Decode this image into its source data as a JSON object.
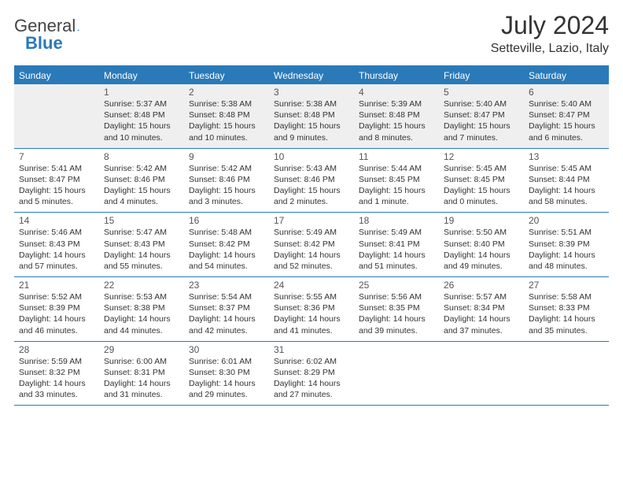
{
  "logo": {
    "text1": "General",
    "text2": "Blue"
  },
  "title": "July 2024",
  "location": "Setteville, Lazio, Italy",
  "colors": {
    "brand": "#2a7ab9",
    "text": "#333333",
    "bg_alt": "#efefef"
  },
  "day_headers": [
    "Sunday",
    "Monday",
    "Tuesday",
    "Wednesday",
    "Thursday",
    "Friday",
    "Saturday"
  ],
  "weeks": [
    [
      null,
      {
        "n": "1",
        "sr": "Sunrise: 5:37 AM",
        "ss": "Sunset: 8:48 PM",
        "d1": "Daylight: 15 hours",
        "d2": "and 10 minutes."
      },
      {
        "n": "2",
        "sr": "Sunrise: 5:38 AM",
        "ss": "Sunset: 8:48 PM",
        "d1": "Daylight: 15 hours",
        "d2": "and 10 minutes."
      },
      {
        "n": "3",
        "sr": "Sunrise: 5:38 AM",
        "ss": "Sunset: 8:48 PM",
        "d1": "Daylight: 15 hours",
        "d2": "and 9 minutes."
      },
      {
        "n": "4",
        "sr": "Sunrise: 5:39 AM",
        "ss": "Sunset: 8:48 PM",
        "d1": "Daylight: 15 hours",
        "d2": "and 8 minutes."
      },
      {
        "n": "5",
        "sr": "Sunrise: 5:40 AM",
        "ss": "Sunset: 8:47 PM",
        "d1": "Daylight: 15 hours",
        "d2": "and 7 minutes."
      },
      {
        "n": "6",
        "sr": "Sunrise: 5:40 AM",
        "ss": "Sunset: 8:47 PM",
        "d1": "Daylight: 15 hours",
        "d2": "and 6 minutes."
      }
    ],
    [
      {
        "n": "7",
        "sr": "Sunrise: 5:41 AM",
        "ss": "Sunset: 8:47 PM",
        "d1": "Daylight: 15 hours",
        "d2": "and 5 minutes."
      },
      {
        "n": "8",
        "sr": "Sunrise: 5:42 AM",
        "ss": "Sunset: 8:46 PM",
        "d1": "Daylight: 15 hours",
        "d2": "and 4 minutes."
      },
      {
        "n": "9",
        "sr": "Sunrise: 5:42 AM",
        "ss": "Sunset: 8:46 PM",
        "d1": "Daylight: 15 hours",
        "d2": "and 3 minutes."
      },
      {
        "n": "10",
        "sr": "Sunrise: 5:43 AM",
        "ss": "Sunset: 8:46 PM",
        "d1": "Daylight: 15 hours",
        "d2": "and 2 minutes."
      },
      {
        "n": "11",
        "sr": "Sunrise: 5:44 AM",
        "ss": "Sunset: 8:45 PM",
        "d1": "Daylight: 15 hours",
        "d2": "and 1 minute."
      },
      {
        "n": "12",
        "sr": "Sunrise: 5:45 AM",
        "ss": "Sunset: 8:45 PM",
        "d1": "Daylight: 15 hours",
        "d2": "and 0 minutes."
      },
      {
        "n": "13",
        "sr": "Sunrise: 5:45 AM",
        "ss": "Sunset: 8:44 PM",
        "d1": "Daylight: 14 hours",
        "d2": "and 58 minutes."
      }
    ],
    [
      {
        "n": "14",
        "sr": "Sunrise: 5:46 AM",
        "ss": "Sunset: 8:43 PM",
        "d1": "Daylight: 14 hours",
        "d2": "and 57 minutes."
      },
      {
        "n": "15",
        "sr": "Sunrise: 5:47 AM",
        "ss": "Sunset: 8:43 PM",
        "d1": "Daylight: 14 hours",
        "d2": "and 55 minutes."
      },
      {
        "n": "16",
        "sr": "Sunrise: 5:48 AM",
        "ss": "Sunset: 8:42 PM",
        "d1": "Daylight: 14 hours",
        "d2": "and 54 minutes."
      },
      {
        "n": "17",
        "sr": "Sunrise: 5:49 AM",
        "ss": "Sunset: 8:42 PM",
        "d1": "Daylight: 14 hours",
        "d2": "and 52 minutes."
      },
      {
        "n": "18",
        "sr": "Sunrise: 5:49 AM",
        "ss": "Sunset: 8:41 PM",
        "d1": "Daylight: 14 hours",
        "d2": "and 51 minutes."
      },
      {
        "n": "19",
        "sr": "Sunrise: 5:50 AM",
        "ss": "Sunset: 8:40 PM",
        "d1": "Daylight: 14 hours",
        "d2": "and 49 minutes."
      },
      {
        "n": "20",
        "sr": "Sunrise: 5:51 AM",
        "ss": "Sunset: 8:39 PM",
        "d1": "Daylight: 14 hours",
        "d2": "and 48 minutes."
      }
    ],
    [
      {
        "n": "21",
        "sr": "Sunrise: 5:52 AM",
        "ss": "Sunset: 8:39 PM",
        "d1": "Daylight: 14 hours",
        "d2": "and 46 minutes."
      },
      {
        "n": "22",
        "sr": "Sunrise: 5:53 AM",
        "ss": "Sunset: 8:38 PM",
        "d1": "Daylight: 14 hours",
        "d2": "and 44 minutes."
      },
      {
        "n": "23",
        "sr": "Sunrise: 5:54 AM",
        "ss": "Sunset: 8:37 PM",
        "d1": "Daylight: 14 hours",
        "d2": "and 42 minutes."
      },
      {
        "n": "24",
        "sr": "Sunrise: 5:55 AM",
        "ss": "Sunset: 8:36 PM",
        "d1": "Daylight: 14 hours",
        "d2": "and 41 minutes."
      },
      {
        "n": "25",
        "sr": "Sunrise: 5:56 AM",
        "ss": "Sunset: 8:35 PM",
        "d1": "Daylight: 14 hours",
        "d2": "and 39 minutes."
      },
      {
        "n": "26",
        "sr": "Sunrise: 5:57 AM",
        "ss": "Sunset: 8:34 PM",
        "d1": "Daylight: 14 hours",
        "d2": "and 37 minutes."
      },
      {
        "n": "27",
        "sr": "Sunrise: 5:58 AM",
        "ss": "Sunset: 8:33 PM",
        "d1": "Daylight: 14 hours",
        "d2": "and 35 minutes."
      }
    ],
    [
      {
        "n": "28",
        "sr": "Sunrise: 5:59 AM",
        "ss": "Sunset: 8:32 PM",
        "d1": "Daylight: 14 hours",
        "d2": "and 33 minutes."
      },
      {
        "n": "29",
        "sr": "Sunrise: 6:00 AM",
        "ss": "Sunset: 8:31 PM",
        "d1": "Daylight: 14 hours",
        "d2": "and 31 minutes."
      },
      {
        "n": "30",
        "sr": "Sunrise: 6:01 AM",
        "ss": "Sunset: 8:30 PM",
        "d1": "Daylight: 14 hours",
        "d2": "and 29 minutes."
      },
      {
        "n": "31",
        "sr": "Sunrise: 6:02 AM",
        "ss": "Sunset: 8:29 PM",
        "d1": "Daylight: 14 hours",
        "d2": "and 27 minutes."
      },
      null,
      null,
      null
    ]
  ]
}
